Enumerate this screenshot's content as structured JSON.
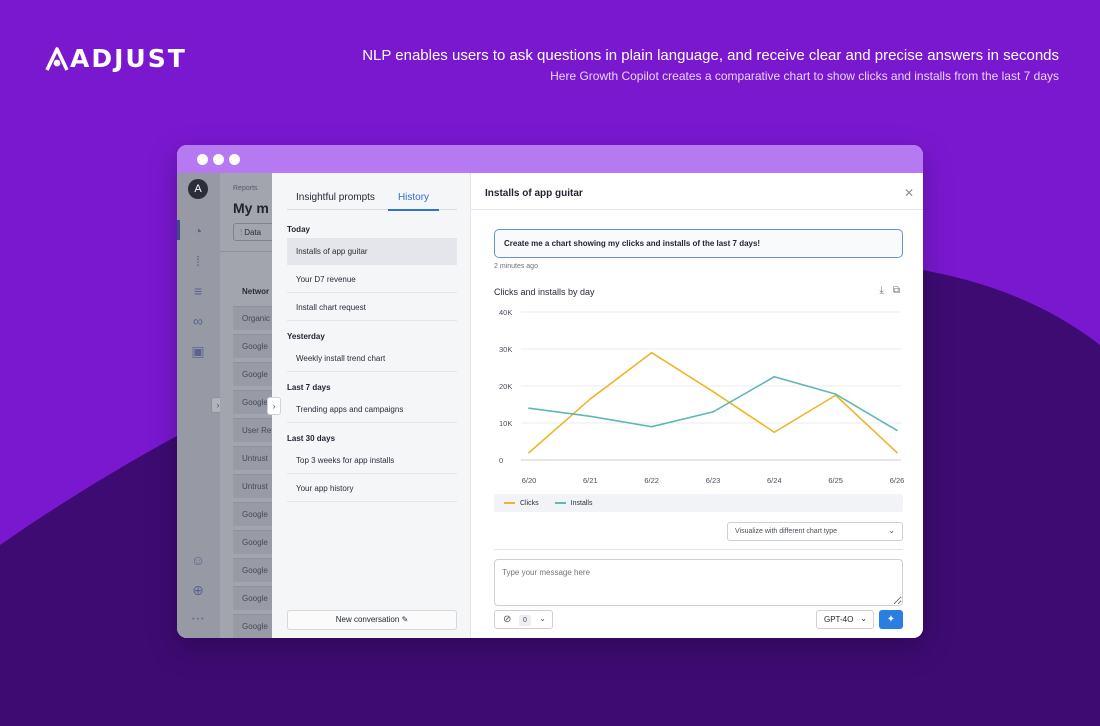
{
  "brand": {
    "logo_text": "ADJUST"
  },
  "headline": {
    "title": "NLP enables users to ask questions in plain language, and receive clear and precise answers in seconds",
    "subtitle": "Here Growth Copilot creates a comparative chart to show clicks and installs from the last 7 days"
  },
  "colors": {
    "background": "#7a18d0",
    "wave": "#3e0b73",
    "titlebar": "#b57af1",
    "accent": "#2f6fd6",
    "clicks": "#f0b429",
    "installs": "#5fb8b3"
  },
  "bg_app": {
    "breadcrumb": "Reports",
    "title": "My m",
    "data_button": "Data",
    "column_header": "Networ",
    "rows": [
      "Organic",
      "Google",
      "Google",
      "Google",
      "User Re",
      "Untrust",
      "Untrust",
      "Google",
      "Google",
      "Google",
      "Google",
      "Google"
    ]
  },
  "history": {
    "tabs": [
      {
        "label": "Insightful prompts"
      },
      {
        "label": "History"
      }
    ],
    "sections": [
      {
        "label": "Today",
        "items": [
          "Installs of app guitar",
          "Your D7 revenue",
          "Install chart request"
        ]
      },
      {
        "label": "Yesterday",
        "items": [
          "Weekly install trend chart"
        ]
      },
      {
        "label": "Last 7 days",
        "items": [
          "Trending apps and campaigns"
        ]
      },
      {
        "label": "Last 30 days",
        "items": [
          "Top 3 weeks for app installs",
          "Your app history"
        ]
      }
    ],
    "new_conversation": "New conversation"
  },
  "main": {
    "title": "Installs of app guitar",
    "prompt": "Create me a chart showing my clicks and installs of the last 7 days!",
    "time_ago": "2 minutes ago",
    "chart_heading": "Clicks and installs by day",
    "visualize_label": "Visualize with different chart type",
    "message_placeholder": "Type your message here",
    "attachment_count": "0",
    "model": "GPT-4O"
  },
  "chart_data": {
    "type": "line",
    "categories": [
      "6/20",
      "6/21",
      "6/22",
      "6/23",
      "6/24",
      "6/25",
      "6/26"
    ],
    "y_ticks": [
      "0",
      "10K",
      "20K",
      "30K",
      "40K"
    ],
    "ylim": [
      0,
      40000
    ],
    "grid": true,
    "legend": "bottom-left",
    "series": [
      {
        "name": "Clicks",
        "color": "#f0b429",
        "values": [
          2000,
          16500,
          29000,
          18500,
          7500,
          17500,
          2000
        ]
      },
      {
        "name": "Installs",
        "color": "#5fb8b3",
        "values": [
          14000,
          11800,
          9000,
          13000,
          22500,
          17800,
          8000
        ]
      }
    ]
  }
}
